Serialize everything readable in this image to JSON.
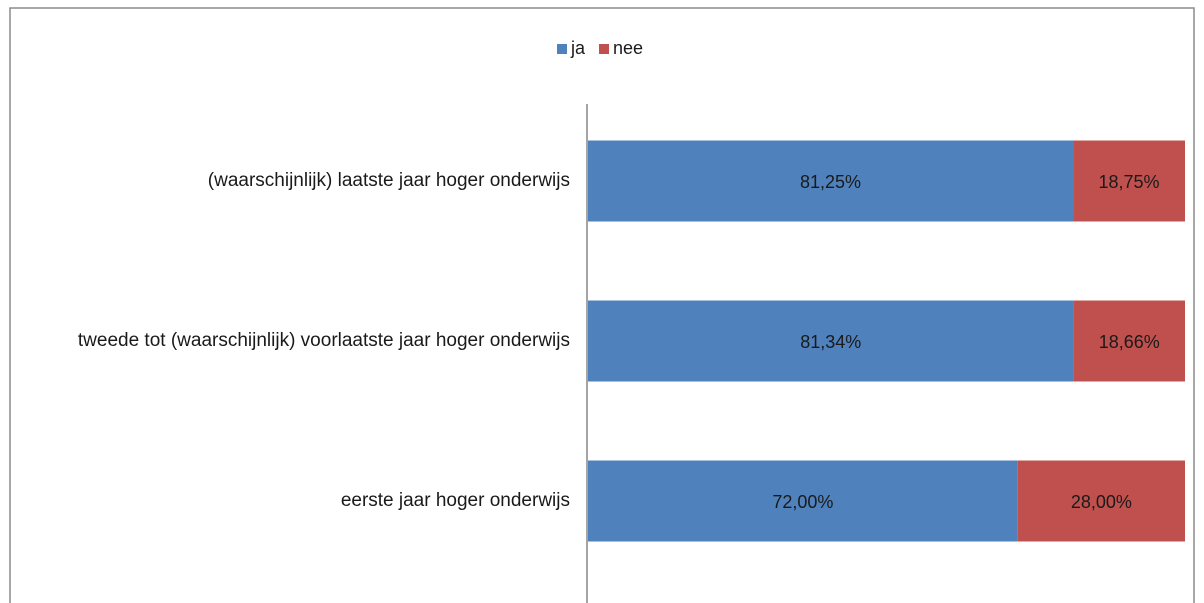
{
  "chart_data": {
    "type": "stacked_barh",
    "categories": [
      "(waarschijnlijk) laatste jaar hoger onderwijs",
      "tweede tot (waarschijnlijk) voorlaatste jaar hoger onderwijs",
      "eerste jaar hoger onderwijs"
    ],
    "series": [
      {
        "name": "ja",
        "color": "#4f81bd",
        "values": [
          81.25,
          81.34,
          72.0
        ],
        "value_labels": [
          "81,25%",
          "81,34%",
          "72,00%"
        ]
      },
      {
        "name": "nee",
        "color": "#c0504d",
        "values": [
          18.75,
          18.66,
          28.0
        ],
        "value_labels": [
          "18,75%",
          "18,66%",
          "28,00%"
        ]
      }
    ],
    "xlim": [
      0,
      100
    ],
    "legend": "top"
  }
}
